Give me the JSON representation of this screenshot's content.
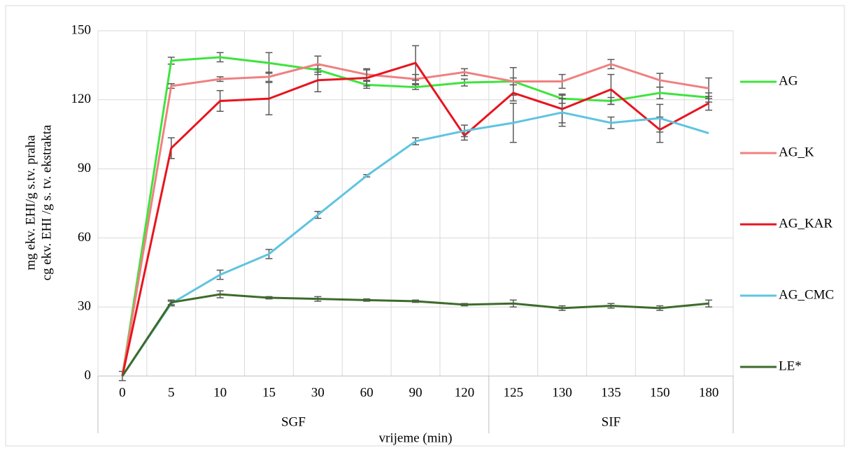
{
  "chart_data": {
    "type": "line",
    "y_label_lines": [
      "mg ekv. EHI/g s.tv. praha",
      "cg ekv. EHI /g s. tv. ekstrakta"
    ],
    "x_label": "vrijeme (min)",
    "categories": [
      "0",
      "5",
      "10",
      "15",
      "30",
      "60",
      "90",
      "120",
      "125",
      "130",
      "135",
      "150",
      "180"
    ],
    "groups": [
      {
        "label": "SGF",
        "count": 8
      },
      {
        "label": "SIF",
        "count": 5
      }
    ],
    "ylim": [
      0,
      150
    ],
    "yticks": [
      0,
      30,
      60,
      90,
      120,
      150
    ],
    "grid": true,
    "legend": "right",
    "series": [
      {
        "name": "AG",
        "color": "#3de43d",
        "values": [
          0,
          137,
          138.5,
          136,
          133,
          126.5,
          125.5,
          127.5,
          128,
          120.5,
          119.5,
          123,
          121
        ],
        "errors": [
          2,
          1.5,
          2,
          4.5,
          2,
          1.5,
          1,
          1.5,
          1.5,
          2,
          1.5,
          2.5,
          2
        ]
      },
      {
        "name": "AG_K",
        "color": "#f08080",
        "values": [
          0,
          126,
          129,
          130,
          135.5,
          131,
          129,
          132,
          128,
          128,
          135.5,
          128.5,
          125
        ],
        "errors": [
          0,
          1,
          1,
          2,
          3.5,
          2.5,
          2,
          1.5,
          6,
          3,
          2,
          3,
          4.5
        ]
      },
      {
        "name": "AG_KAR",
        "color": "#e8141e",
        "values": [
          0,
          99,
          119.5,
          120.5,
          128.5,
          129.5,
          136,
          104.5,
          123,
          116,
          124.5,
          107,
          118.5
        ],
        "errors": [
          0,
          4.5,
          4.5,
          7,
          5,
          3.5,
          7.5,
          2,
          3.5,
          6,
          6.5,
          5.5,
          3
        ]
      },
      {
        "name": "AG_CMC",
        "color": "#5ec4e0",
        "values": [
          0,
          31.5,
          44,
          53,
          70,
          87,
          102,
          106.5,
          110,
          114.5,
          110,
          112,
          105.5
        ],
        "errors": [
          0,
          1,
          2,
          2,
          1.5,
          0.5,
          1.5,
          2.5,
          8.5,
          6,
          2.5,
          6,
          0
        ]
      },
      {
        "name": "LE*",
        "color": "#3e6b2a",
        "values": [
          0,
          32,
          35.5,
          34,
          33.5,
          33,
          32.5,
          31,
          31.5,
          29.5,
          30.5,
          29.5,
          31.5
        ],
        "errors": [
          0,
          1,
          1.5,
          0.5,
          1,
          0.5,
          0.5,
          0.5,
          1.5,
          1,
          1,
          1,
          1.5
        ]
      }
    ]
  }
}
